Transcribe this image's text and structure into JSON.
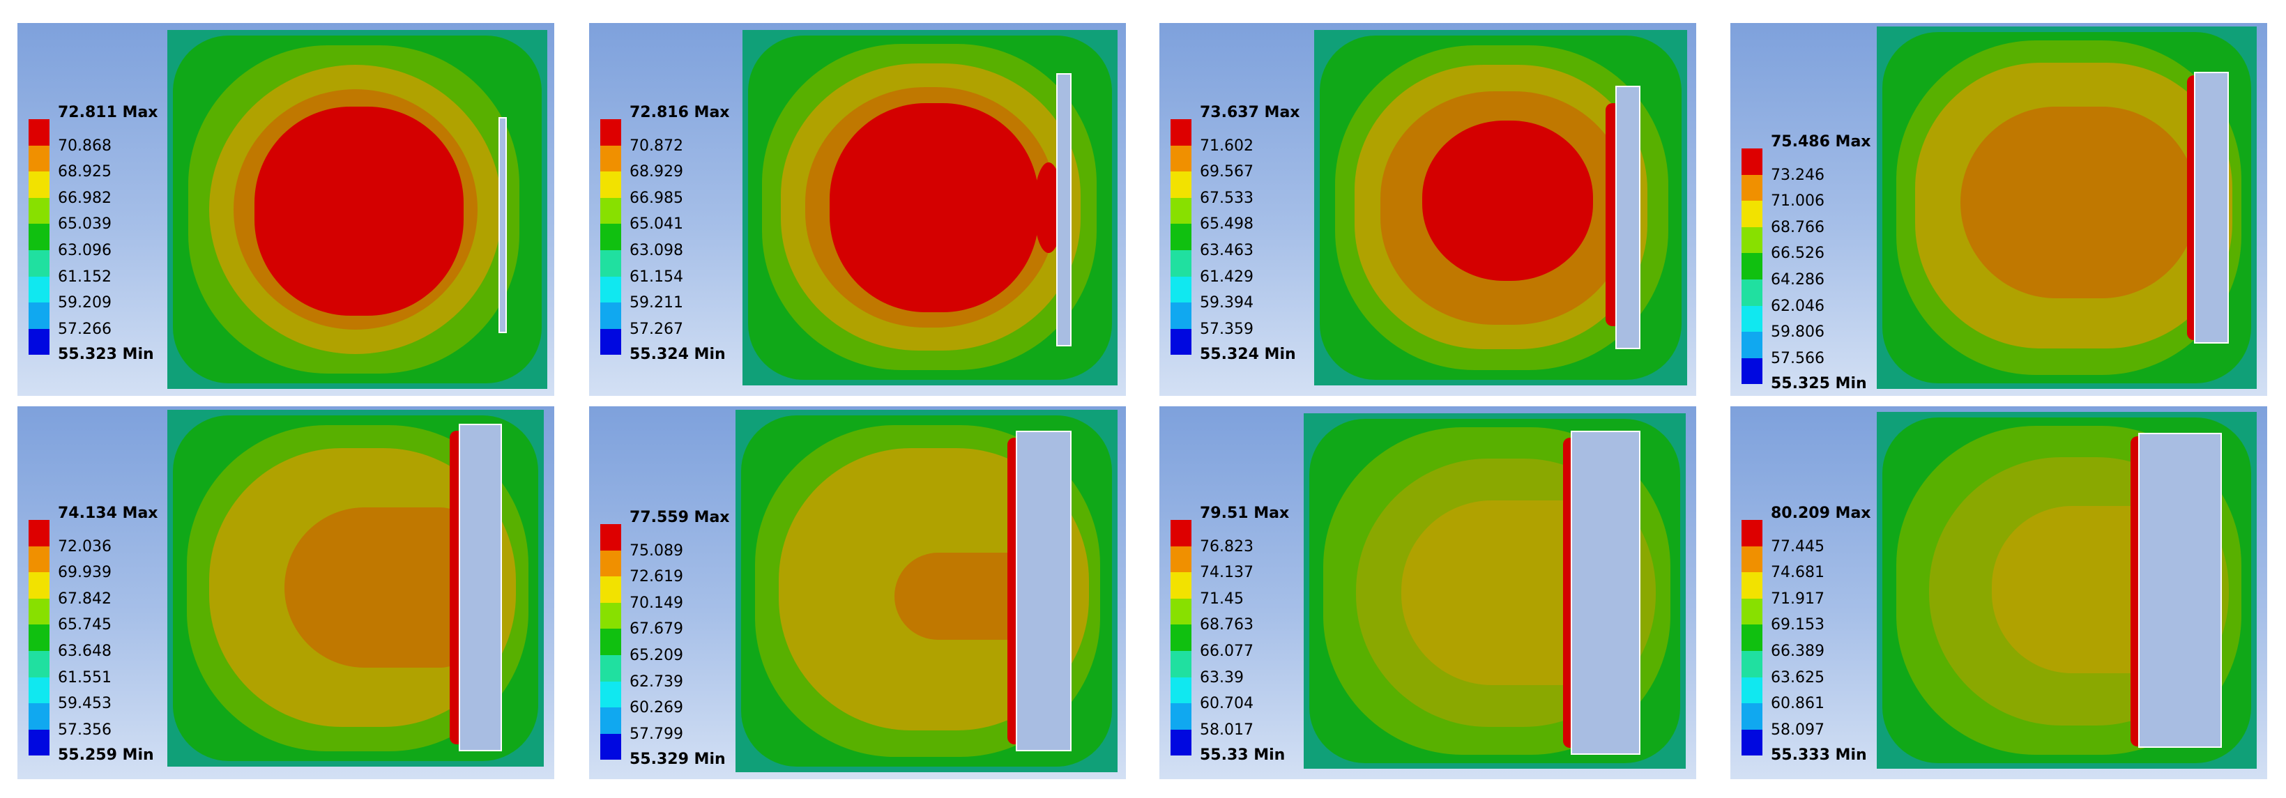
{
  "colors": {
    "scale": [
      "#dd0000",
      "#f09000",
      "#f2e200",
      "#88e000",
      "#10c010",
      "#20e0a0",
      "#10e8f0",
      "#10a8f0",
      "#0008e0"
    ],
    "field": {
      "red": "#d40000",
      "dark_orange": "#c07800",
      "olive": "#b0a200",
      "yellow_green": "#8aa800",
      "light_green": "#58b000",
      "green": "#10a818",
      "teal": "#10a078",
      "plate": "#a8bde2"
    }
  },
  "panels": [
    {
      "legend": {
        "max_label": "72.811 Max",
        "intermediate": [
          "70.868",
          "68.925",
          "66.982",
          "65.039",
          "63.096",
          "61.152",
          "59.209",
          "57.266"
        ],
        "min_label": "55.323 Min"
      }
    },
    {
      "legend": {
        "max_label": "72.816 Max",
        "intermediate": [
          "70.872",
          "68.929",
          "66.985",
          "65.041",
          "63.098",
          "61.154",
          "59.211",
          "57.267"
        ],
        "min_label": "55.324 Min"
      }
    },
    {
      "legend": {
        "max_label": "73.637 Max",
        "intermediate": [
          "71.602",
          "69.567",
          "67.533",
          "65.498",
          "63.463",
          "61.429",
          "59.394",
          "57.359"
        ],
        "min_label": "55.324 Min"
      }
    },
    {
      "legend": {
        "max_label": "75.486 Max",
        "intermediate": [
          "73.246",
          "71.006",
          "68.766",
          "66.526",
          "64.286",
          "62.046",
          "59.806",
          "57.566"
        ],
        "min_label": "55.325 Min"
      }
    },
    {
      "legend": {
        "max_label": "74.134 Max",
        "intermediate": [
          "72.036",
          "69.939",
          "67.842",
          "65.745",
          "63.648",
          "61.551",
          "59.453",
          "57.356"
        ],
        "min_label": "55.259 Min"
      }
    },
    {
      "legend": {
        "max_label": "77.559 Max",
        "intermediate": [
          "75.089",
          "72.619",
          "70.149",
          "67.679",
          "65.209",
          "62.739",
          "60.269",
          "57.799"
        ],
        "min_label": "55.329 Min"
      }
    },
    {
      "legend": {
        "max_label": "79.51 Max",
        "intermediate": [
          "76.823",
          "74.137",
          "71.45",
          "68.763",
          "66.077",
          "63.39",
          "60.704",
          "58.017"
        ],
        "min_label": "55.33 Min"
      }
    },
    {
      "legend": {
        "max_label": "80.209 Max",
        "intermediate": [
          "77.445",
          "74.681",
          "71.917",
          "69.153",
          "66.389",
          "63.625",
          "60.861",
          "58.097"
        ],
        "min_label": "55.333 Min"
      }
    }
  ]
}
